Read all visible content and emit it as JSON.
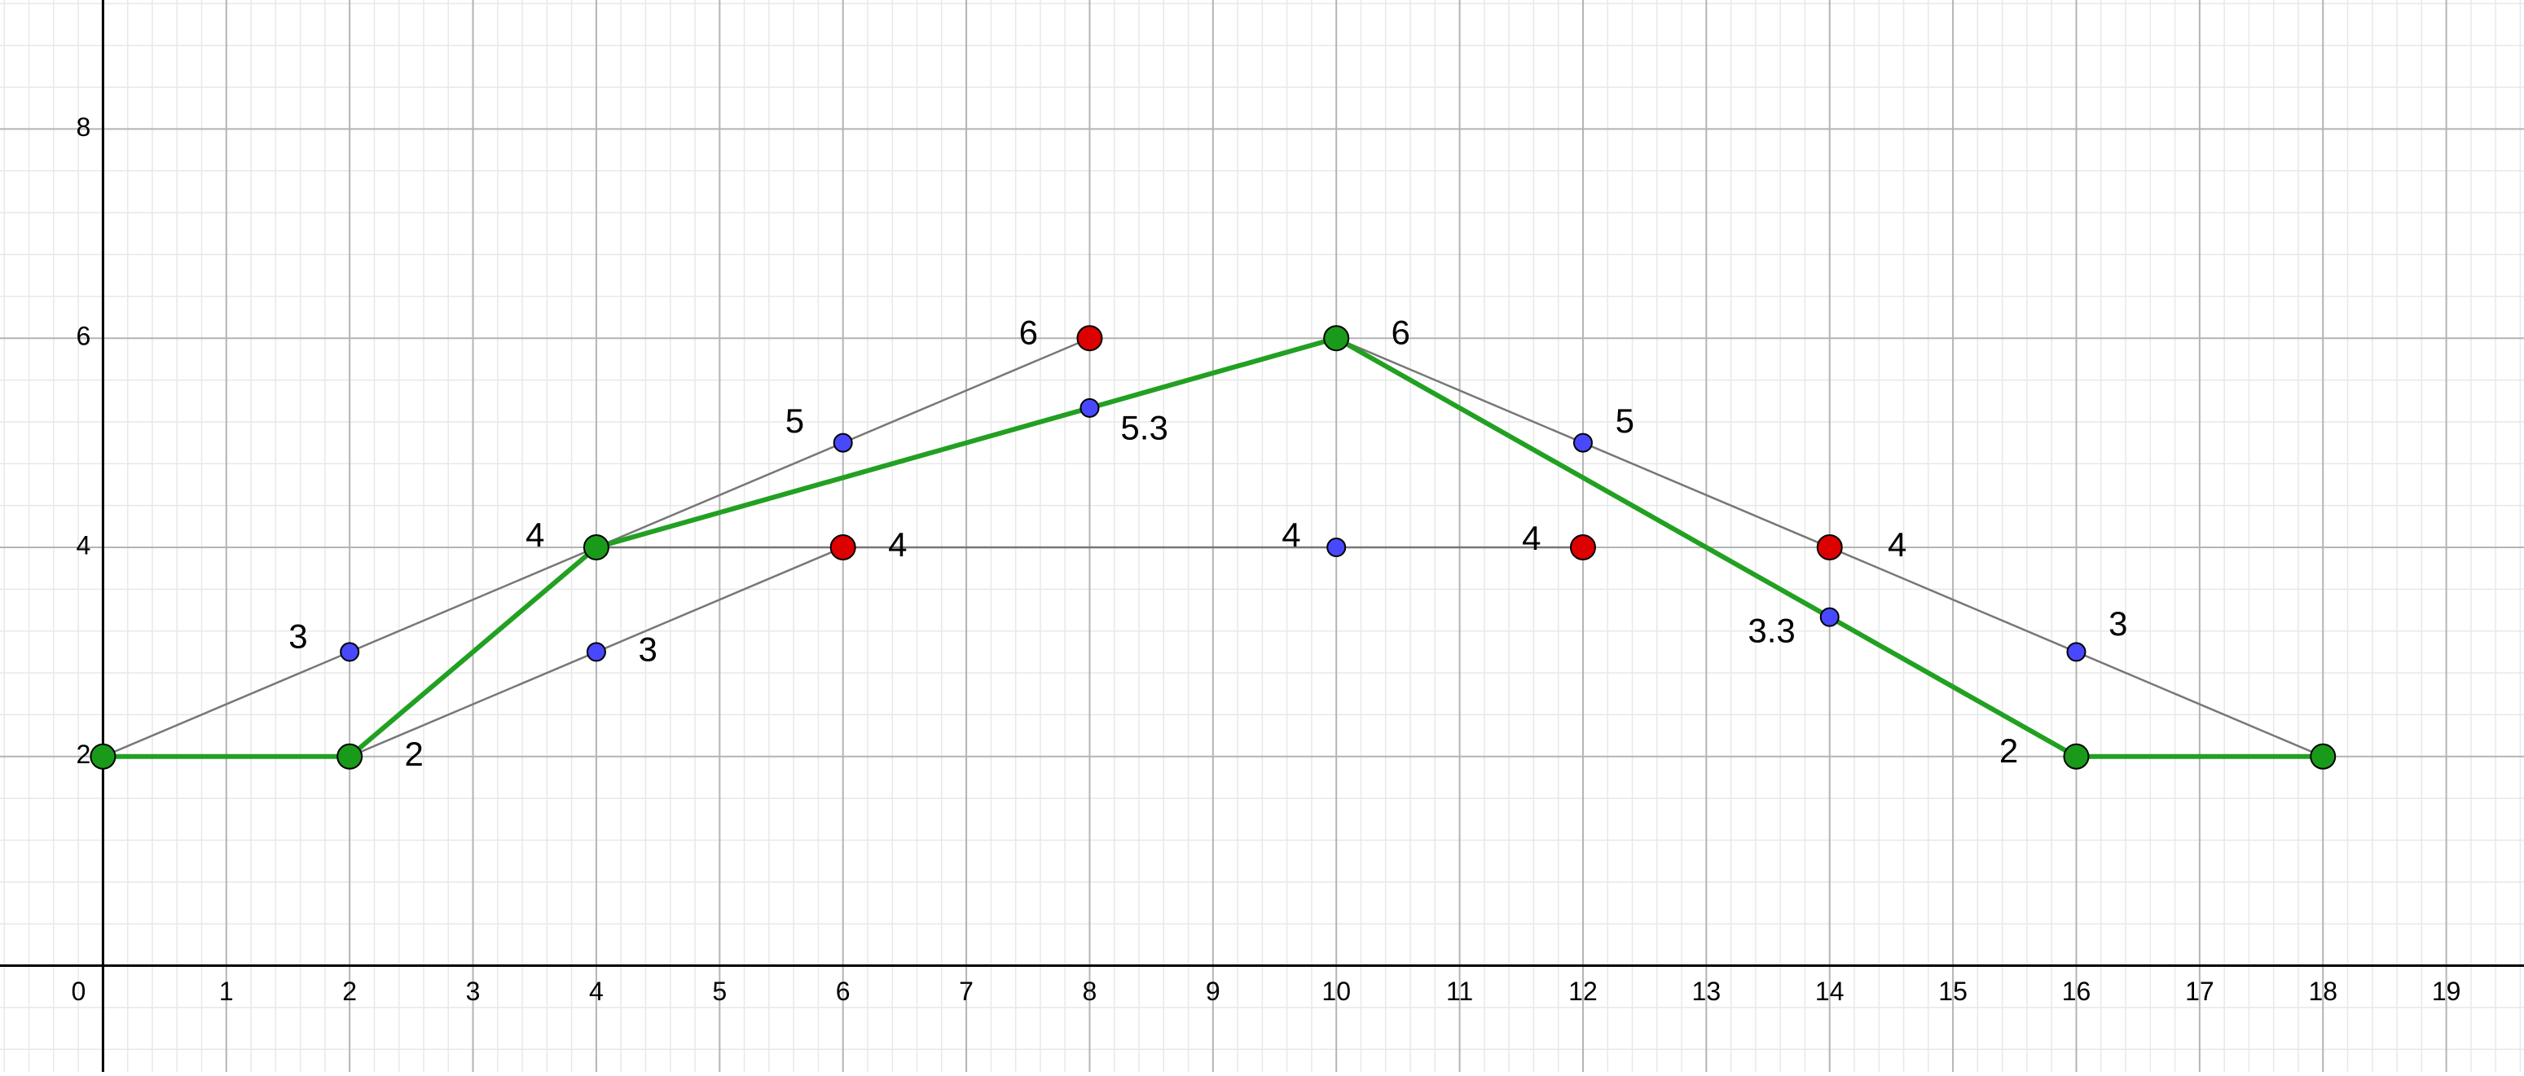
{
  "chart_data": {
    "type": "scatter",
    "xlim": [
      -0.835,
      19.63
    ],
    "ylim": [
      -1.016,
      9.234
    ],
    "xticks": [
      0,
      1,
      2,
      3,
      4,
      5,
      6,
      7,
      8,
      9,
      10,
      11,
      12,
      13,
      14,
      15,
      16,
      17,
      18,
      19
    ],
    "yticks": [
      2,
      4,
      6,
      8
    ],
    "grid": true,
    "minor_divisions": 5,
    "lines": [
      {
        "color": "#777777",
        "x": [
          0,
          8
        ],
        "values": [
          2,
          6
        ]
      },
      {
        "color": "#777777",
        "x": [
          2,
          6
        ],
        "values": [
          2,
          4
        ]
      },
      {
        "color": "#777777",
        "x": [
          4,
          12
        ],
        "values": [
          4,
          4
        ]
      },
      {
        "color": "#777777",
        "x": [
          10,
          18
        ],
        "values": [
          6,
          2
        ]
      },
      {
        "color": "#22a022",
        "x": [
          0,
          2,
          4,
          8,
          10,
          14,
          16,
          18
        ],
        "values": [
          2,
          2,
          4,
          5.333,
          6,
          3.333,
          2,
          2
        ]
      }
    ],
    "series": [
      {
        "color": "#1a9a1a",
        "x": [
          0,
          2,
          4,
          10,
          16,
          18
        ],
        "values": [
          2,
          2,
          4,
          6,
          2,
          2
        ],
        "value_labels": [
          null,
          "2",
          "4",
          "6",
          "2",
          null
        ]
      },
      {
        "color": "#dd0000",
        "x": [
          8,
          6,
          12,
          14
        ],
        "values": [
          6,
          4,
          4,
          4
        ],
        "value_labels": [
          "6",
          "4",
          "4",
          "4"
        ]
      },
      {
        "color": "#4848ff",
        "x": [
          2,
          4,
          6,
          8,
          10,
          12,
          14,
          16
        ],
        "values": [
          3,
          3,
          5,
          5.333,
          4,
          5,
          3.333,
          3
        ],
        "value_labels": [
          "3",
          "3",
          "5",
          "5.3",
          "4",
          "5",
          "3.3",
          "3"
        ]
      }
    ]
  }
}
